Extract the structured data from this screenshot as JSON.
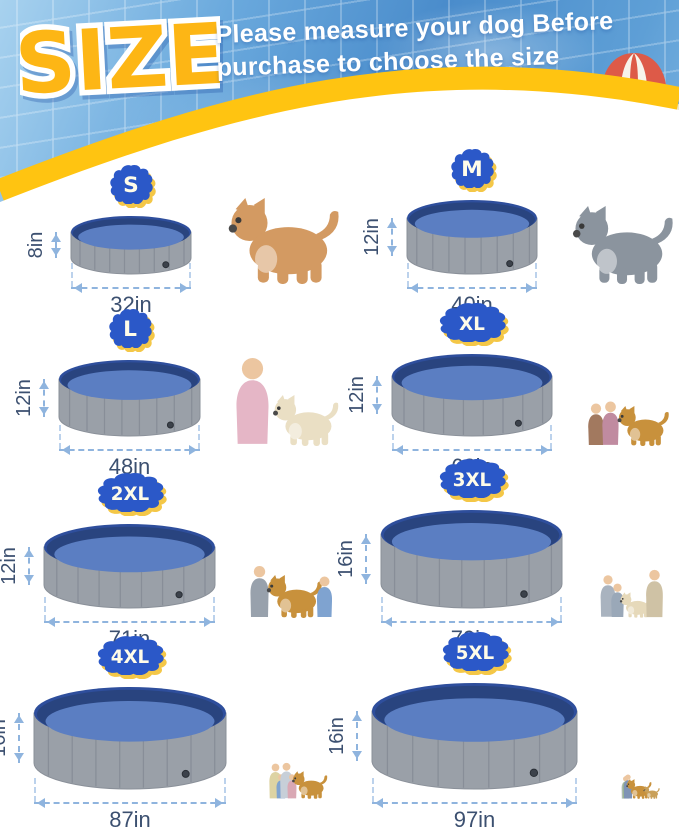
{
  "header": {
    "logo": "SIZE",
    "tagline_line1": "Please measure your dog Before",
    "tagline_line2": "purchase to choose the size"
  },
  "sizes": [
    {
      "label": "S",
      "height": "8in",
      "width": "32in",
      "photo": "corgi dog",
      "figures": [
        [
          "dog",
          "#d39a62",
          1.5
        ]
      ]
    },
    {
      "label": "M",
      "height": "12in",
      "width": "40in",
      "photo": "husky dog",
      "figures": [
        [
          "dog",
          "#8b949e",
          1.75
        ]
      ]
    },
    {
      "label": "L",
      "height": "12in",
      "width": "48in",
      "photo": "girl hugging white puppy",
      "figures": [
        [
          "child",
          "#e5b6c6",
          1.35
        ],
        [
          "dog",
          "#eadfc4",
          1.05
        ]
      ]
    },
    {
      "label": "XL",
      "height": "12in",
      "width": "63in",
      "photo": "toddler and girl with golden retriever",
      "figures": [
        [
          "child",
          "#a2795f",
          1.15
        ],
        [
          "child",
          "#c08ba0",
          1.2
        ],
        [
          "dog",
          "#c8913c",
          1.45
        ]
      ]
    },
    {
      "label": "2XL",
      "height": "12in",
      "width": "71in",
      "photo": "woman and boy with golden retriever",
      "figures": [
        [
          "person",
          "#98a1ac",
          1.0
        ],
        [
          "dog",
          "#c8913c",
          1.45
        ],
        [
          "child",
          "#7fa3d0",
          1.05
        ]
      ]
    },
    {
      "label": "3XL",
      "height": "16in",
      "width": "79in",
      "photo": "family lying with golden puppy",
      "figures": [
        [
          "person",
          "#a9b3bf",
          0.95
        ],
        [
          "child",
          "#9aa8b8",
          1.0
        ],
        [
          "dog",
          "#e6d9ba",
          1.0
        ],
        [
          "person",
          "#cfc2a5",
          1.05
        ]
      ]
    },
    {
      "label": "4XL",
      "height": "16in",
      "width": "87in",
      "photo": "family of four with golden retriever",
      "figures": [
        [
          "person",
          "#ddd3a3",
          1.0
        ],
        [
          "child",
          "#7fa3d0",
          0.95
        ],
        [
          "person",
          "#c7cfd8",
          1.05
        ],
        [
          "child",
          "#d9a8b4",
          0.95
        ],
        [
          "dog",
          "#c8913c",
          1.4
        ]
      ]
    },
    {
      "label": "5XL",
      "height": "16in",
      "width": "97in",
      "photo": "family with golden retriever and small dog",
      "figures": [
        [
          "person",
          "#b9c0c7",
          0.95
        ],
        [
          "person",
          "#9fb98f",
          1.0
        ],
        [
          "person",
          "#7f93b5",
          1.05
        ],
        [
          "dog",
          "#c8913c",
          1.5
        ],
        [
          "dog",
          "#c9a05a",
          0.95
        ]
      ]
    }
  ],
  "colors": {
    "badge_blue": "#2b58c8",
    "accent_yellow": "#ffc411",
    "logo_yellow": "#fdb615",
    "dimension_text": "#3c5070",
    "arrow_blue": "#8fb4de",
    "pool_wall_gray": "#9aa0a8",
    "pool_rim_blue": "#2e4e9c",
    "pool_floor_blue": "#5b7ec2"
  }
}
